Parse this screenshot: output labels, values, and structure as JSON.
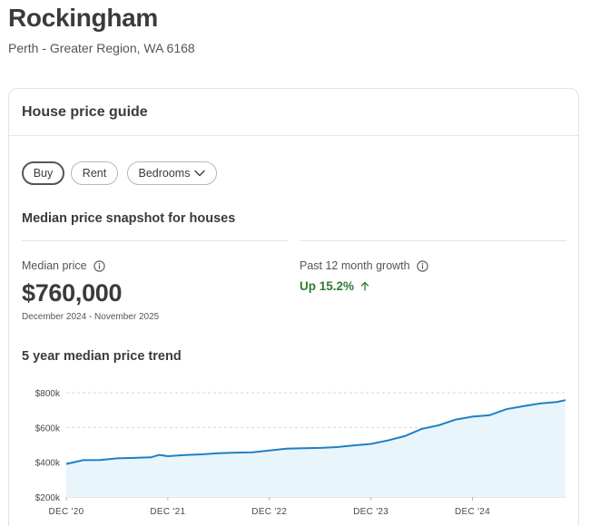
{
  "header": {
    "title": "Rockingham",
    "subtitle": "Perth - Greater Region, WA 6168"
  },
  "card": {
    "title": "House price guide",
    "filters": {
      "buy": "Buy",
      "rent": "Rent",
      "bedrooms": "Bedrooms",
      "active": "Buy"
    },
    "snapshot_title": "Median price snapshot for houses",
    "median": {
      "label": "Median price",
      "value": "$760,000",
      "period": "December 2024 - November 2025"
    },
    "growth": {
      "label": "Past 12 month growth",
      "value": "Up 15.2%",
      "color": "#2e7d32"
    },
    "trend_title": "5 year median price trend"
  },
  "icons": {
    "info": "info-icon",
    "chevron": "chevron-down-icon",
    "arrow": "arrow-up-icon"
  },
  "chart_data": {
    "type": "area",
    "ylim": [
      200000,
      800000
    ],
    "yticks": [
      200000,
      400000,
      600000,
      800000
    ],
    "ytick_labels": [
      "$200k",
      "$400k",
      "$600k",
      "$800k"
    ],
    "xticks": [
      2020.917,
      2021.917,
      2022.917,
      2023.917,
      2024.917
    ],
    "xtick_labels": [
      "DEC '20",
      "DEC '21",
      "DEC '22",
      "DEC '23",
      "DEC '24"
    ],
    "line_color": "#1f7fc4",
    "fill_color": "#e8f6fc",
    "series": [
      {
        "x": [
          2020.917,
          2021.083,
          2021.25,
          2021.417,
          2021.583,
          2021.75,
          2021.833,
          2021.917,
          2022.083,
          2022.25,
          2022.417,
          2022.583,
          2022.75,
          2022.917,
          2023.083,
          2023.25,
          2023.417,
          2023.583,
          2023.75,
          2023.917,
          2024.083,
          2024.25,
          2024.417,
          2024.583,
          2024.75,
          2024.917,
          2025.083,
          2025.25,
          2025.417,
          2025.583,
          2025.75,
          2025.833
        ],
        "y": [
          390000,
          412000,
          413000,
          422000,
          425000,
          428000,
          442000,
          435000,
          441000,
          445000,
          452000,
          455000,
          457000,
          467000,
          478000,
          480000,
          482000,
          487000,
          497000,
          505000,
          525000,
          550000,
          592000,
          612000,
          645000,
          662000,
          670000,
          705000,
          722000,
          738000,
          747000,
          757000
        ]
      }
    ]
  }
}
